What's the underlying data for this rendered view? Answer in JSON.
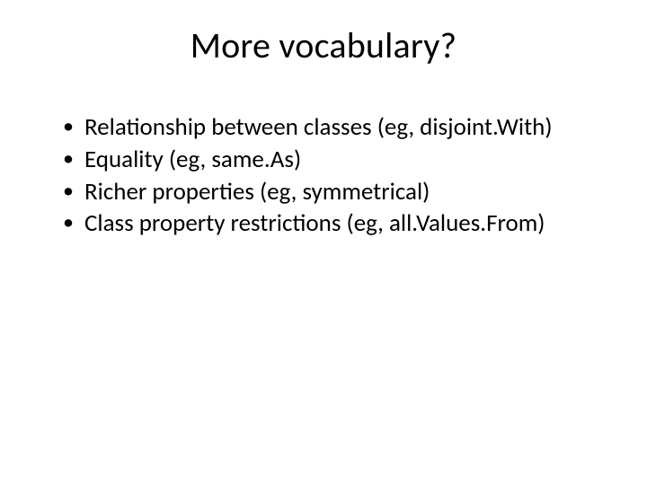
{
  "slide": {
    "background_color": "#ffffff",
    "text_color": "#000000",
    "font_family": "Calibri",
    "title": {
      "text": "More vocabulary?",
      "fontsize": 40,
      "align": "center",
      "weight": 400
    },
    "bullets": {
      "fontsize": 27,
      "marker": "•",
      "items": [
        "Relationship between classes (eg, disjoint.With)",
        "Equality (eg, same.As)",
        "Richer properties (eg, symmetrical)",
        "Class property restrictions (eg, all.Values.From)"
      ]
    }
  }
}
